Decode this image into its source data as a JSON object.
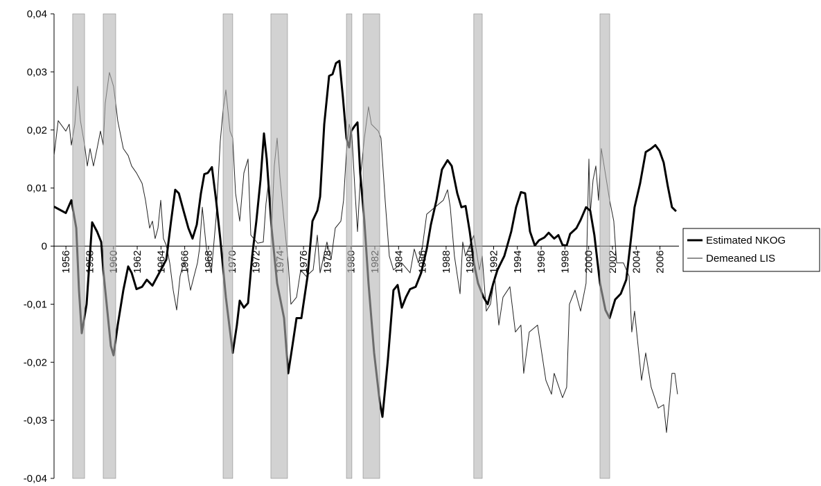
{
  "chart_data": {
    "type": "line",
    "xlim": [
      1955,
      2007.6
    ],
    "xticks": [
      1956,
      1958,
      1960,
      1962,
      1964,
      1966,
      1968,
      1970,
      1972,
      1974,
      1976,
      1978,
      1980,
      1982,
      1984,
      1986,
      1988,
      1990,
      1992,
      1994,
      1996,
      1998,
      2000,
      2002,
      2004,
      2006
    ],
    "ylim": [
      -0.04,
      0.04
    ],
    "yticks": [
      {
        "value": -0.04,
        "label": "-0,04"
      },
      {
        "value": -0.03,
        "label": "-0,03"
      },
      {
        "value": -0.02,
        "label": "-0,02"
      },
      {
        "value": -0.01,
        "label": "-0,01"
      },
      0,
      {
        "value": 0.01,
        "label": "0,01"
      },
      {
        "value": 0.02,
        "label": "0,02"
      },
      {
        "value": 0.03,
        "label": "0,03"
      },
      {
        "value": 0.04,
        "label": "0,04"
      }
    ],
    "legend": "right",
    "shading_color": "#b4b4b4",
    "shading": [
      [
        1956.57,
        1957.57
      ],
      [
        1959.14,
        1960.19
      ],
      [
        1969.23,
        1970.04
      ],
      [
        1973.25,
        1974.65
      ],
      [
        1979.61,
        1980.07
      ],
      [
        1981.01,
        1982.41
      ],
      [
        1990.33,
        1991.04
      ],
      [
        2000.95,
        2001.77
      ]
    ],
    "series": [
      {
        "name": "Estimated NKOG",
        "color": "#000000",
        "width": 3,
        "x": [
          1955.0,
          1955.99,
          1956.46,
          1956.87,
          1957.1,
          1957.33,
          1957.74,
          1958.21,
          1958.62,
          1958.97,
          1959.14,
          1959.78,
          1960.01,
          1960.36,
          1960.83,
          1961.24,
          1961.53,
          1961.94,
          1962.41,
          1962.81,
          1963.28,
          1963.86,
          1964.45,
          1964.85,
          1965.2,
          1965.5,
          1965.9,
          1966.31,
          1966.66,
          1967.01,
          1967.36,
          1967.65,
          1967.94,
          1968.29,
          1968.64,
          1968.99,
          1969.46,
          1970.04,
          1970.39,
          1970.63,
          1970.98,
          1971.33,
          1971.68,
          1972.03,
          1972.38,
          1972.67,
          1972.9,
          1973.31,
          1973.78,
          1974.36,
          1974.71,
          1975.06,
          1975.41,
          1975.82,
          1976.34,
          1976.75,
          1977.16,
          1977.39,
          1977.74,
          1978.15,
          1978.44,
          1978.73,
          1979.02,
          1979.31,
          1979.61,
          1979.84,
          1980.01,
          1980.31,
          1980.54,
          1980.77,
          1981.12,
          1981.47,
          1981.94,
          1982.41,
          1982.64,
          1983.1,
          1983.57,
          1983.92,
          1984.27,
          1984.62,
          1984.97,
          1985.44,
          1985.9,
          1986.37,
          1986.72,
          1987.19,
          1987.65,
          1988.12,
          1988.47,
          1988.94,
          1989.29,
          1989.64,
          1989.99,
          1990.34,
          1990.69,
          1991.15,
          1991.5,
          1991.97,
          1992.32,
          1992.9,
          1993.48,
          1993.89,
          1994.3,
          1994.65,
          1995.06,
          1995.47,
          1995.82,
          1996.28,
          1996.63,
          1997.1,
          1997.45,
          1997.8,
          1998.15,
          1998.44,
          1998.97,
          1999.32,
          1999.78,
          2000.13,
          2000.48,
          2000.95,
          2001.41,
          2001.76,
          2002.23,
          2002.7,
          2003.16,
          2003.51,
          2003.86,
          2004.33,
          2004.8,
          2005.26,
          2005.61,
          2005.96,
          2006.31,
          2006.66,
          2007.01,
          2007.36
        ],
        "values": [
          0.0068,
          0.0057,
          0.0079,
          0.0031,
          -0.0076,
          -0.015,
          -0.01,
          0.0041,
          0.0025,
          0.0007,
          -0.0041,
          -0.0172,
          -0.0188,
          -0.0136,
          -0.0076,
          -0.0035,
          -0.0046,
          -0.0074,
          -0.007,
          -0.0058,
          -0.0068,
          -0.0046,
          -0.0023,
          0.0043,
          0.0097,
          0.0091,
          0.0061,
          0.0031,
          0.0013,
          0.0037,
          0.0091,
          0.0124,
          0.0126,
          0.0136,
          0.0079,
          0.0013,
          -0.0088,
          -0.0184,
          -0.0136,
          -0.0094,
          -0.0106,
          -0.0098,
          -0.0017,
          0.0043,
          0.0114,
          0.0194,
          0.015,
          0.0031,
          -0.0064,
          -0.0124,
          -0.0219,
          -0.0172,
          -0.0124,
          -0.0124,
          -0.0052,
          0.0043,
          0.0061,
          0.0085,
          0.021,
          0.0293,
          0.0296,
          0.0315,
          0.0319,
          0.0257,
          0.0186,
          0.017,
          0.0198,
          0.0207,
          0.0213,
          0.0126,
          0.0043,
          -0.0064,
          -0.0184,
          -0.0267,
          -0.0294,
          -0.0195,
          -0.0076,
          -0.0067,
          -0.0106,
          -0.0088,
          -0.0074,
          -0.007,
          -0.0046,
          -0.0005,
          0.0037,
          0.0079,
          0.0132,
          0.0148,
          0.0138,
          0.0091,
          0.0067,
          0.0069,
          0.0025,
          -0.0029,
          -0.0064,
          -0.0088,
          -0.01,
          -0.0064,
          -0.0041,
          -0.0017,
          0.0025,
          0.0067,
          0.0093,
          0.0091,
          0.0025,
          0.0001,
          0.001,
          0.0015,
          0.0023,
          0.0013,
          0.0019,
          0.0002,
          0.0001,
          0.0021,
          0.0031,
          0.0045,
          0.0067,
          0.0061,
          0.0019,
          -0.0064,
          -0.011,
          -0.0124,
          -0.0092,
          -0.0082,
          -0.0058,
          0.0004,
          0.0067,
          0.0108,
          0.0162,
          0.0168,
          0.0174,
          0.0164,
          0.0144,
          0.0103,
          0.0067,
          0.006
        ]
      },
      {
        "name": "Demeaned LIS",
        "color": "#222222",
        "width": 1,
        "x": [
          1955.0,
          1955.35,
          1955.99,
          1956.28,
          1956.46,
          1956.75,
          1956.98,
          1957.22,
          1957.57,
          1957.8,
          1958.03,
          1958.32,
          1958.62,
          1958.91,
          1959.14,
          1959.31,
          1959.66,
          1960.01,
          1960.19,
          1960.36,
          1960.83,
          1961.24,
          1961.53,
          1961.94,
          1962.41,
          1962.7,
          1963.05,
          1963.28,
          1963.51,
          1963.75,
          1963.98,
          1964.21,
          1964.45,
          1964.74,
          1965.03,
          1965.32,
          1965.61,
          1965.9,
          1966.2,
          1966.49,
          1966.78,
          1967.07,
          1967.24,
          1967.48,
          1967.83,
          1968.24,
          1968.64,
          1968.99,
          1969.23,
          1969.46,
          1969.81,
          1970.04,
          1970.28,
          1970.63,
          1970.98,
          1971.33,
          1971.56,
          1972.14,
          1972.61,
          1972.84,
          1973.08,
          1973.31,
          1973.54,
          1973.78,
          1974.01,
          1974.36,
          1974.71,
          1974.94,
          1975.41,
          1975.76,
          1976.22,
          1976.81,
          1977.16,
          1977.39,
          1977.97,
          1978.32,
          1978.67,
          1979.14,
          1979.37,
          1979.61,
          1979.84,
          1980.07,
          1980.31,
          1980.54,
          1980.77,
          1981.12,
          1981.47,
          1981.71,
          1982.29,
          1982.52,
          1982.87,
          1983.22,
          1983.57,
          1984.27,
          1984.97,
          1985.32,
          1985.67,
          1986.02,
          1986.37,
          1987.07,
          1987.77,
          1988.12,
          1988.35,
          1988.7,
          1989.17,
          1989.4,
          1989.64,
          1990.34,
          1990.8,
          1991.04,
          1991.38,
          1991.73,
          1992.09,
          1992.44,
          1992.79,
          1993.37,
          1993.83,
          1994.3,
          1994.53,
          1995.0,
          1995.7,
          1996.4,
          1996.87,
          1997.1,
          1997.8,
          1998.15,
          1998.38,
          1998.85,
          1999.32,
          1999.78,
          2000.02,
          2000.13,
          2000.37,
          2000.6,
          2000.83,
          2001.06,
          2001.3,
          2001.76,
          2002.11,
          2002.35,
          2002.93,
          2003.4,
          2003.63,
          2003.86,
          2004.45,
          2004.8,
          2005.26,
          2005.85,
          2006.31,
          2006.55,
          2007.01,
          2007.25,
          2007.48
        ],
        "values": [
          0.0156,
          0.0216,
          0.0198,
          0.021,
          0.0174,
          0.021,
          0.0275,
          0.0216,
          0.0174,
          0.0138,
          0.0168,
          0.0138,
          0.0168,
          0.0198,
          0.0174,
          0.0246,
          0.0299,
          0.0275,
          0.0246,
          0.0216,
          0.0168,
          0.0156,
          0.0138,
          0.0126,
          0.0108,
          0.0079,
          0.0031,
          0.0043,
          0.0013,
          0.0031,
          0.0079,
          0.0013,
          0.0001,
          -0.0029,
          -0.0076,
          -0.011,
          -0.0052,
          -0.0029,
          -0.0041,
          -0.0076,
          -0.0052,
          -0.0029,
          -0.0005,
          0.0067,
          -0.0005,
          -0.0046,
          0.0049,
          0.018,
          0.0234,
          0.0269,
          0.0198,
          0.0186,
          0.0091,
          0.0043,
          0.0126,
          0.015,
          0.0019,
          0.0005,
          0.0007,
          0.0073,
          0.0114,
          0.0031,
          0.0138,
          0.0186,
          0.012,
          0.0043,
          -0.0029,
          -0.01,
          -0.0088,
          -0.0041,
          -0.0052,
          -0.0041,
          0.0019,
          -0.0046,
          0.0007,
          -0.0023,
          0.0031,
          0.0043,
          0.0079,
          0.0162,
          0.021,
          0.0192,
          0.0103,
          0.0025,
          0.0114,
          0.0186,
          0.024,
          0.021,
          0.0198,
          0.0186,
          0.0079,
          -0.0017,
          -0.0041,
          -0.0029,
          -0.0046,
          -0.0005,
          -0.0029,
          0.0001,
          0.0055,
          0.0067,
          0.0079,
          0.0097,
          0.0067,
          -0.0017,
          -0.0082,
          0.0007,
          -0.0017,
          0.0019,
          -0.0041,
          -0.0017,
          -0.0112,
          -0.01,
          -0.0052,
          -0.0136,
          -0.0088,
          -0.007,
          -0.0148,
          -0.0136,
          -0.0219,
          -0.0148,
          -0.0136,
          -0.0231,
          -0.0255,
          -0.0219,
          -0.0261,
          -0.0243,
          -0.01,
          -0.0076,
          -0.0112,
          -0.0064,
          0.015,
          0.0055,
          0.0114,
          0.0138,
          0.0079,
          0.0168,
          0.0138,
          0.0079,
          0.0043,
          -0.0029,
          -0.0029,
          -0.0052,
          -0.0148,
          -0.0112,
          -0.0231,
          -0.0184,
          -0.0243,
          -0.0279,
          -0.0273,
          -0.0321,
          -0.0219,
          -0.0219,
          -0.0255
        ]
      }
    ]
  }
}
